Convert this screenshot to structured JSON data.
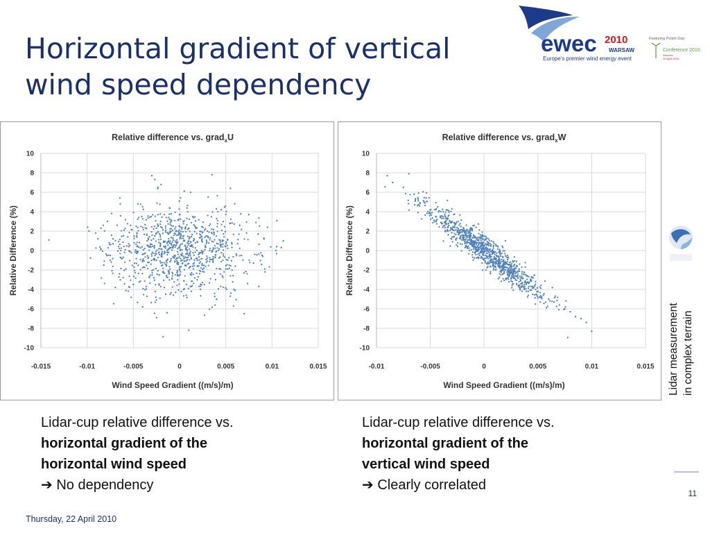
{
  "slide": {
    "title_line1": "Horizontal gradient of vertical",
    "title_line2": "wind speed dependency",
    "page_number": "11",
    "date": "Thursday, 22 April 2010",
    "side_label_line1": "Lidar measurement",
    "side_label_line2": "in complex terrain"
  },
  "logo": {
    "name": "ewec",
    "year": "2010",
    "city": "WARSAW",
    "tagline": "Europe's premier wind energy event",
    "featuring": "Featuring Polish Day:",
    "conference": "Conference 2010",
    "place": "Warsaw",
    "day": "19 April 2010"
  },
  "captions": {
    "left": {
      "line1": "Lidar-cup relative difference vs.",
      "bold1": "horizontal gradient of the",
      "bold2": "horizontal wind speed",
      "arrow": "➔",
      "result": " No dependency"
    },
    "right": {
      "line1": "Lidar-cup relative difference vs.",
      "bold1": "horizontal gradient of the",
      "bold2": "vertical wind speed",
      "arrow": "➔",
      "result": " Clearly correlated"
    }
  },
  "colors": {
    "title": "#1b2f6b",
    "marker": "#4f81bd",
    "grid": "#d9d9d9"
  },
  "chart_data": [
    {
      "type": "scatter",
      "title": "Relative difference vs. grad",
      "title_sub": "x",
      "title_suffix": "U",
      "xlabel": "Wind Speed Gradient ((m/s)/m)",
      "ylabel": "Relative Difference (%)",
      "xlim": [
        -0.015,
        0.015
      ],
      "ylim": [
        -10,
        10
      ],
      "xticks": [
        "-0.015",
        "-0.01",
        "-0.005",
        "0",
        "0.005",
        "0.01",
        "0.015"
      ],
      "yticks": [
        "10",
        "8",
        "6",
        "4",
        "2",
        "0",
        "-2",
        "-4",
        "-6",
        "-8",
        "-10"
      ],
      "grid": true,
      "description": "about 1000 points centred near (0, 0), x spread ±0.009, y spread ±6, no trend",
      "points": [
        [
          -0.0098,
          2.0
        ],
        [
          -0.0085,
          0.1
        ],
        [
          -0.0082,
          -1.5
        ],
        [
          -0.0078,
          3.0
        ],
        [
          -0.0075,
          -0.5
        ],
        [
          -0.0072,
          1.2
        ],
        [
          -0.0065,
          -2.4
        ],
        [
          -0.006,
          2.1
        ],
        [
          -0.0055,
          0.4
        ],
        [
          -0.005,
          -3.5
        ],
        [
          -0.0045,
          4.8
        ],
        [
          -0.004,
          -5.8
        ],
        [
          -0.0035,
          1.0
        ],
        [
          -0.003,
          7.7
        ],
        [
          -0.0025,
          -6.9
        ],
        [
          -0.002,
          6.8
        ],
        [
          -0.0015,
          -4.5
        ],
        [
          -0.001,
          2.9
        ],
        [
          -0.0005,
          -1.1
        ],
        [
          0.0,
          0.3
        ],
        [
          0.0005,
          6.1
        ],
        [
          0.001,
          -8.2
        ],
        [
          0.0015,
          3.4
        ],
        [
          0.002,
          -2.7
        ],
        [
          0.0025,
          1.9
        ],
        [
          0.003,
          -0.8
        ],
        [
          0.0035,
          7.8
        ],
        [
          0.004,
          -5.0
        ],
        [
          0.0045,
          4.2
        ],
        [
          0.005,
          -1.9
        ],
        [
          0.0055,
          6.4
        ],
        [
          0.006,
          -4.1
        ],
        [
          0.0065,
          2.6
        ],
        [
          0.007,
          -6.5
        ],
        [
          0.0075,
          3.7
        ],
        [
          0.008,
          -1.3
        ],
        [
          0.0085,
          1.7
        ],
        [
          0.009,
          -0.6
        ],
        [
          0.0095,
          2.4
        ],
        [
          0.0105,
          0.4
        ],
        [
          0.011,
          0.3
        ]
      ]
    },
    {
      "type": "scatter",
      "title": "Relative difference vs. grad",
      "title_sub": "x",
      "title_suffix": "W",
      "xlabel": "Wind Speed Gradient ((m/s)/m)",
      "ylabel": "Relative Difference (%)",
      "xlim": [
        -0.01,
        0.015
      ],
      "ylim": [
        -10,
        10
      ],
      "xticks": [
        "-0.01",
        "-0.005",
        "0",
        "0.005",
        "0.01",
        "0.015"
      ],
      "yticks": [
        "10",
        "8",
        "6",
        "4",
        "2",
        "0",
        "-2",
        "-4",
        "-6",
        "-8",
        "-10"
      ],
      "grid": true,
      "description": "about 1000 points along a descending line, roughly y = -850·x, x from -0.009 to 0.010",
      "points": [
        [
          -0.009,
          7.7
        ],
        [
          -0.0085,
          7.0
        ],
        [
          -0.0075,
          6.5
        ],
        [
          -0.007,
          7.9
        ],
        [
          -0.0065,
          5.8
        ],
        [
          -0.006,
          4.6
        ],
        [
          -0.0055,
          4.9
        ],
        [
          -0.005,
          3.8
        ],
        [
          -0.0045,
          3.5
        ],
        [
          -0.004,
          2.9
        ],
        [
          -0.0035,
          2.7
        ],
        [
          -0.003,
          2.2
        ],
        [
          -0.0025,
          1.9
        ],
        [
          -0.002,
          1.3
        ],
        [
          -0.0015,
          1.1
        ],
        [
          -0.001,
          0.6
        ],
        [
          -0.0005,
          0.3
        ],
        [
          0.0,
          -0.1
        ],
        [
          0.0005,
          -0.4
        ],
        [
          0.001,
          -0.9
        ],
        [
          0.0015,
          -1.2
        ],
        [
          0.002,
          -1.7
        ],
        [
          0.0025,
          -2.0
        ],
        [
          0.003,
          -2.6
        ],
        [
          0.0035,
          -2.8
        ],
        [
          0.004,
          -3.3
        ],
        [
          0.0045,
          -3.7
        ],
        [
          0.005,
          -4.2
        ],
        [
          0.0055,
          -4.6
        ],
        [
          0.006,
          -5.0
        ],
        [
          0.0065,
          -5.3
        ],
        [
          0.007,
          -5.6
        ],
        [
          0.0075,
          -6.0
        ],
        [
          0.008,
          -6.3
        ],
        [
          0.0085,
          -6.8
        ],
        [
          0.009,
          -7.0
        ],
        [
          0.0095,
          -7.4
        ],
        [
          0.01,
          -8.3
        ]
      ]
    }
  ]
}
